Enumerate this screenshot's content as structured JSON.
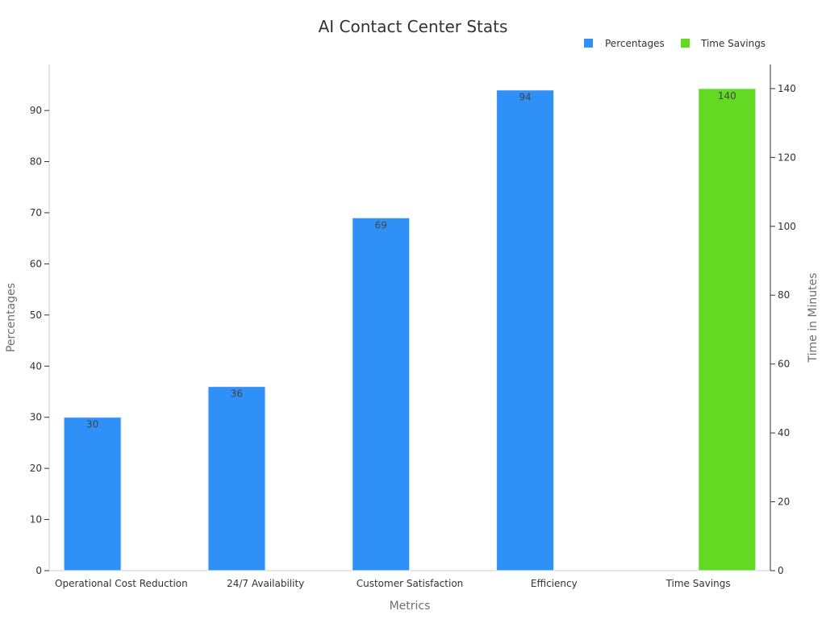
{
  "chart_data": {
    "type": "bar",
    "title": "AI Contact Center Stats",
    "xlabel": "Metrics",
    "ylabel": "Percentages",
    "y2label": "Time in Minutes",
    "categories": [
      "Operational Cost Reduction",
      "24/7 Availability",
      "Customer Satisfaction",
      "Efficiency",
      "Time Savings"
    ],
    "series": [
      {
        "name": "Percentages",
        "axis": "left",
        "color": "#2f91f8",
        "values": [
          30,
          36,
          69,
          94,
          null
        ]
      },
      {
        "name": "Time Savings",
        "axis": "right",
        "color": "#63d922",
        "values": [
          null,
          null,
          null,
          null,
          140
        ]
      }
    ],
    "ylim": [
      0,
      99
    ],
    "y2lim": [
      0,
      147
    ],
    "yticks": [
      0,
      10,
      20,
      30,
      40,
      50,
      60,
      70,
      80,
      90
    ],
    "y2ticks": [
      0,
      20,
      40,
      60,
      80,
      100,
      120,
      140
    ],
    "legend_position": "top-right",
    "grid": false
  }
}
